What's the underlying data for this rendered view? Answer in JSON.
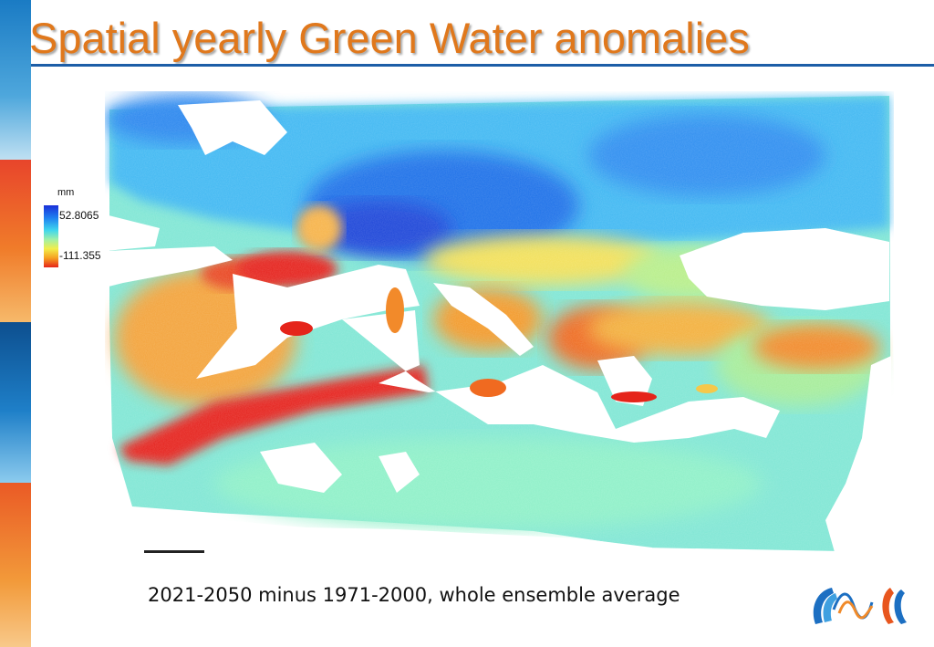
{
  "slide": {
    "title": "Spatial yearly Green Water anomalies",
    "caption": "2021-2050 minus 1971-2000, whole ensemble average"
  },
  "legend": {
    "unit": "mm",
    "max_label": "52.8065",
    "min_label": "-111.355",
    "colors": [
      "#1a2fd8",
      "#1e7ff0",
      "#3fd6ee",
      "#9ff0a8",
      "#f2ee4a",
      "#f6a021",
      "#e5241a"
    ]
  },
  "palette": {
    "title_color": "#e0781c",
    "rule_color": "#1d5ea7",
    "land_wet": "#1e7ff0",
    "land_neutral": "#8ef0c8",
    "land_dry": "#e5241a"
  }
}
